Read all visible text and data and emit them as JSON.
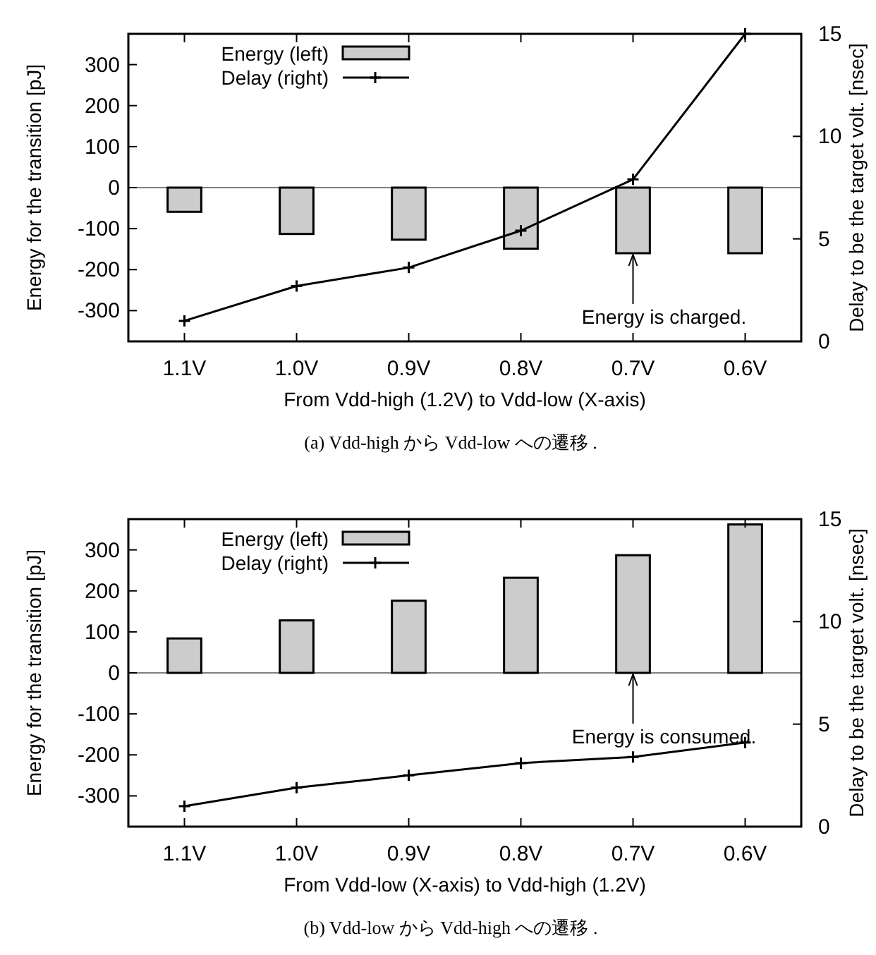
{
  "chart_data": [
    {
      "type": "bar",
      "categories": [
        "1.1V",
        "1.0V",
        "0.9V",
        "0.8V",
        "0.7V",
        "0.6V"
      ],
      "series": [
        {
          "name": "Energy (left)",
          "color": "#cccccc",
          "values": [
            -59,
            -113,
            -127,
            -149,
            -160,
            -160
          ]
        },
        {
          "name": "Delay (right)",
          "type": "line",
          "axis": "y2",
          "color": "#000000",
          "values": [
            1.0,
            2.7,
            3.6,
            5.4,
            7.9,
            15.0
          ]
        }
      ],
      "xlabel": "From Vdd-high (1.2V) to Vdd-low (X-axis)",
      "ylabel": "Energy for the transition [pJ]",
      "y2label": "Delay to be the target volt. [nsec]",
      "ylim": [
        -375,
        375
      ],
      "yticks": [
        -300,
        -200,
        -100,
        0,
        100,
        200,
        300
      ],
      "y2lim": [
        0,
        15
      ],
      "y2ticks": [
        0,
        5,
        10,
        15
      ],
      "ref_lines": [
        {
          "axis": "y",
          "value": 0,
          "color": "#808080"
        }
      ],
      "legend": "top left",
      "marker": "cross",
      "line_style": "solid",
      "grid": false,
      "annotations": [
        {
          "text": "Energy is charged.",
          "x": "0.7V",
          "y": -160
        },
        "(a) Vdd-high から Vdd-low への遷移 ."
      ]
    },
    {
      "type": "bar",
      "categories": [
        "1.1V",
        "1.0V",
        "0.9V",
        "0.8V",
        "0.7V",
        "0.6V"
      ],
      "series": [
        {
          "name": "Energy (left)",
          "color": "#cccccc",
          "values": [
            84,
            128,
            176,
            232,
            287,
            362
          ]
        },
        {
          "name": "Delay (right)",
          "type": "line",
          "axis": "y2",
          "color": "#000000",
          "values": [
            1.0,
            1.9,
            2.5,
            3.1,
            3.4,
            4.1
          ]
        }
      ],
      "xlabel": "From Vdd-low (X-axis) to Vdd-high (1.2V)",
      "ylabel": "Energy for the transition [pJ]",
      "y2label": "Delay to be the target volt. [nsec]",
      "ylim": [
        -375,
        375
      ],
      "yticks": [
        -300,
        -200,
        -100,
        0,
        100,
        200,
        300
      ],
      "y2lim": [
        0,
        15
      ],
      "y2ticks": [
        0,
        5,
        10,
        15
      ],
      "ref_lines": [
        {
          "axis": "y",
          "value": 0,
          "color": "#808080"
        }
      ],
      "legend": "top left",
      "marker": "cross",
      "line_style": "solid",
      "grid": false,
      "annotations": [
        {
          "text": "Energy is consumed.",
          "x": "0.7V",
          "y": 0
        },
        "(b) Vdd-low から Vdd-high への遷移 ."
      ]
    }
  ]
}
